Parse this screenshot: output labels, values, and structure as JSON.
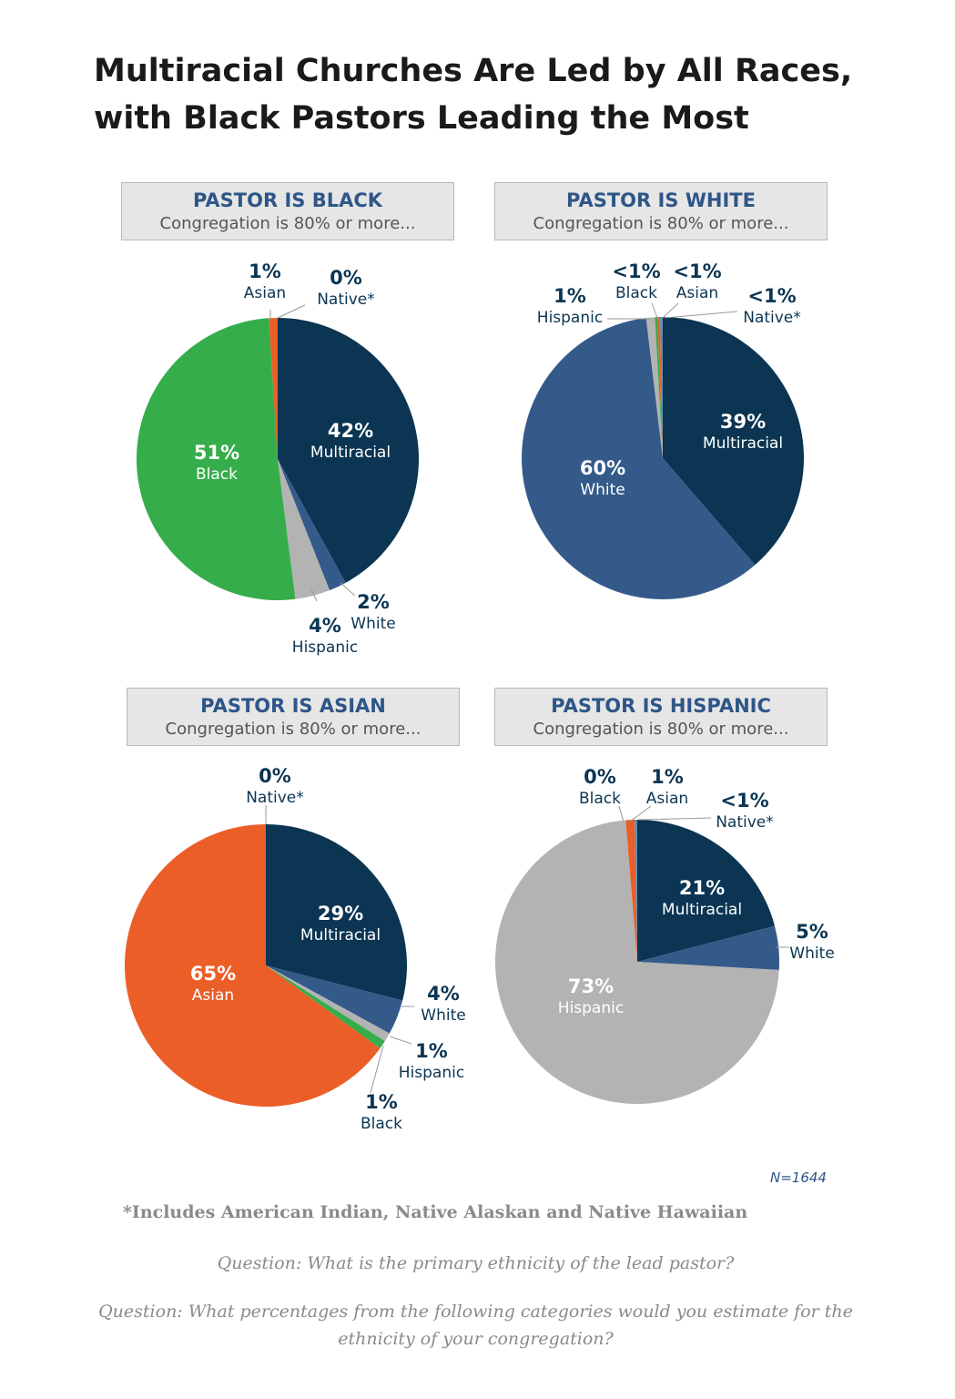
{
  "title": {
    "line1": "Multiracial Churches Are Led by All Races,",
    "line2": "with Black Pastors Leading the Most"
  },
  "colors": {
    "multiracial": "#0b3552",
    "white": "#345a8a",
    "hispanic": "#b3b3b3",
    "black": "#36ad4b",
    "asian": "#ec5e27",
    "native": "#5a8fb4",
    "header_text": "#2e5688"
  },
  "panels": [
    {
      "header": "PASTOR IS BLACK",
      "subheader": "Congregation is 80% or more..."
    },
    {
      "header": "PASTOR IS WHITE",
      "subheader": "Congregation is 80% or more..."
    },
    {
      "header": "PASTOR IS ASIAN",
      "subheader": "Congregation is 80% or more..."
    },
    {
      "header": "PASTOR IS HISPANIC",
      "subheader": "Congregation is 80% or more..."
    }
  ],
  "chart_data": [
    {
      "type": "pie",
      "title": "PASTOR IS BLACK",
      "subtitle": "Congregation is 80% or more...",
      "slices": [
        {
          "category": "Multiracial",
          "label": "42%",
          "value": 42
        },
        {
          "category": "White",
          "label": "2%",
          "value": 2
        },
        {
          "category": "Hispanic",
          "label": "4%",
          "value": 4
        },
        {
          "category": "Black",
          "label": "51%",
          "value": 51
        },
        {
          "category": "Asian",
          "label": "1%",
          "value": 1
        },
        {
          "category": "Native*",
          "label": "0%",
          "value": 0
        }
      ]
    },
    {
      "type": "pie",
      "title": "PASTOR IS WHITE",
      "subtitle": "Congregation is 80% or more...",
      "slices": [
        {
          "category": "Multiracial",
          "label": "39%",
          "value": 39
        },
        {
          "category": "White",
          "label": "60%",
          "value": 60
        },
        {
          "category": "Hispanic",
          "label": "1%",
          "value": 1
        },
        {
          "category": "Black",
          "label": "<1%",
          "value": 0.3
        },
        {
          "category": "Asian",
          "label": "<1%",
          "value": 0.3
        },
        {
          "category": "Native*",
          "label": "<1%",
          "value": 0.3
        }
      ]
    },
    {
      "type": "pie",
      "title": "PASTOR IS ASIAN",
      "subtitle": "Congregation is 80% or more...",
      "slices": [
        {
          "category": "Multiracial",
          "label": "29%",
          "value": 29
        },
        {
          "category": "White",
          "label": "4%",
          "value": 4
        },
        {
          "category": "Hispanic",
          "label": "1%",
          "value": 1
        },
        {
          "category": "Black",
          "label": "1%",
          "value": 1
        },
        {
          "category": "Asian",
          "label": "65%",
          "value": 65
        },
        {
          "category": "Native*",
          "label": "0%",
          "value": 0
        }
      ]
    },
    {
      "type": "pie",
      "title": "PASTOR IS HISPANIC",
      "subtitle": "Congregation is 80% or more...",
      "slices": [
        {
          "category": "Multiracial",
          "label": "21%",
          "value": 21
        },
        {
          "category": "White",
          "label": "5%",
          "value": 5
        },
        {
          "category": "Hispanic",
          "label": "73%",
          "value": 73
        },
        {
          "category": "Black",
          "label": "0%",
          "value": 0
        },
        {
          "category": "Asian",
          "label": "1%",
          "value": 1
        },
        {
          "category": "Native*",
          "label": "<1%",
          "value": 0.3
        }
      ]
    }
  ],
  "sample_size": "N=1644",
  "footnote": "*Includes American Indian, Native Alaskan and Native Hawaiian",
  "questions": [
    "Question: What is the primary ethnicity of the lead pastor?",
    "Question: What percentages from the following categories would you estimate for the ethnicity of your congregation?"
  ]
}
